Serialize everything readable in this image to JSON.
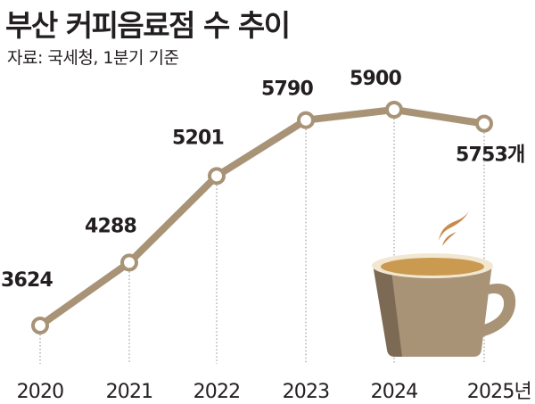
{
  "title": "부산 커피음료점 수 추이",
  "source": "자료: 국세청, 1분기 기준",
  "colors": {
    "line": "#a89377",
    "marker_fill": "#ffffff",
    "cup": "#a89377",
    "cup_shadow": "#7c6a55",
    "coffee_foam": "#f2e7d1",
    "coffee": "#c99a50",
    "steam": "#c98a4e"
  },
  "chart_data": {
    "type": "line",
    "categories": [
      "2020",
      "2021",
      "2022",
      "2023",
      "2024",
      "2025년"
    ],
    "values": [
      3624,
      4288,
      5201,
      5790,
      5900,
      5753
    ],
    "data_labels": [
      "3624",
      "4288",
      "5201",
      "5790",
      "5900",
      "5753개"
    ],
    "title": "부산 커피음료점 수 추이",
    "xlabel": "",
    "ylabel": "",
    "ylim": [
      3300,
      6200
    ],
    "grid": false,
    "legend": "none"
  }
}
